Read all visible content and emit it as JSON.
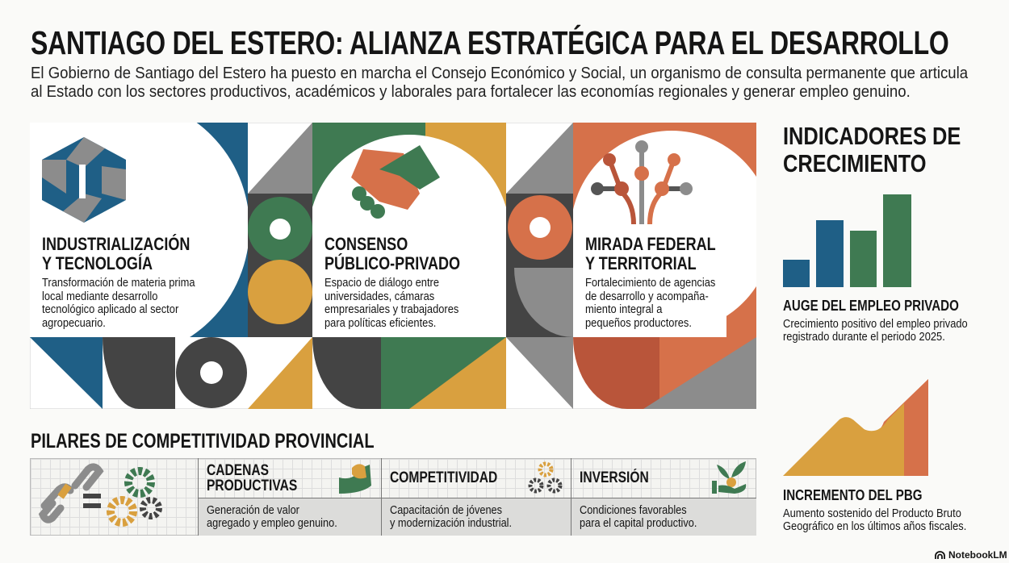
{
  "title": "SANTIAGO DEL ESTERO: ALIANZA ESTRATÉGICA PARA EL DESARROLLO",
  "subtitle_lines": [
    "El Gobierno de Santiago del Estero ha puesto en marcha el Consejo Económico y Social, un organismo de consulta permanente que articula",
    "al Estado con los sectores productivos, académicos y laborales para fortalecer las economías regionales y generar empleo genuino."
  ],
  "colors": {
    "blue": "#1f5f86",
    "green": "#3f7a52",
    "yellow": "#d9a03f",
    "orange": "#d6714a",
    "dark": "#444444",
    "gray": "#8c8c8c"
  },
  "panels": [
    {
      "icon": "hexagon-icon",
      "title_lines": [
        "INDUSTRIALIZACIÓN",
        "Y TECNOLOGÍA"
      ],
      "desc_lines": [
        "Transformación de materia prima",
        "local mediante desarrollo",
        "tecnológico aplicado al sector",
        "agropecuario."
      ]
    },
    {
      "icon": "handshake-icon",
      "title_lines": [
        "CONSENSO",
        "PÚBLICO-PRIVADO"
      ],
      "desc_lines": [
        "Espacio de diálogo entre",
        "universidades, cámaras",
        "empresariales y trabajadores",
        "para políticas eficientes."
      ]
    },
    {
      "icon": "network-tree-icon",
      "title_lines": [
        "MIRADA FEDERAL",
        "Y TERRITORIAL"
      ],
      "desc_lines": [
        "Fortalecimiento de agencias",
        "de desarrollo y acompaña-",
        "miento integral a",
        "pequeños productores."
      ]
    }
  ],
  "indicators": {
    "title_lines": [
      "INDICADORES DE",
      "CRECIMIENTO"
    ],
    "items": [
      {
        "icon": "bar-chart-icon",
        "title": "AUGE DEL EMPLEO PRIVADO",
        "desc_lines": [
          "Crecimiento positivo del empleo privado",
          "registrado durante el periodo 2025."
        ]
      },
      {
        "icon": "mountain-area-icon",
        "title": "INCREMENTO DEL PBG",
        "desc_lines": [
          "Aumento sostenido del Producto Bruto",
          "Geográfico en los últimos años fiscales."
        ]
      }
    ]
  },
  "pillars": {
    "title": "PILARES DE COMPETITIVIDAD PROVINCIAL",
    "items": [
      {
        "icon": "strong-arm-icon",
        "title_lines": [
          "CADENAS",
          "PRODUCTIVAS"
        ],
        "desc_lines": [
          "Generación de valor",
          "agregado y empleo genuino."
        ]
      },
      {
        "icon": "gears-icon",
        "title_lines": [
          "COMPETITIVIDAD"
        ],
        "desc_lines": [
          "Capacitación de jóvenes",
          "y modernización industrial."
        ]
      },
      {
        "icon": "plant-in-hand-icon",
        "title_lines": [
          "INVERSIÓN"
        ],
        "desc_lines": [
          "Condiciones favorables",
          "para el capital productivo."
        ]
      }
    ]
  },
  "footer": {
    "brand": "NotebookLM"
  }
}
